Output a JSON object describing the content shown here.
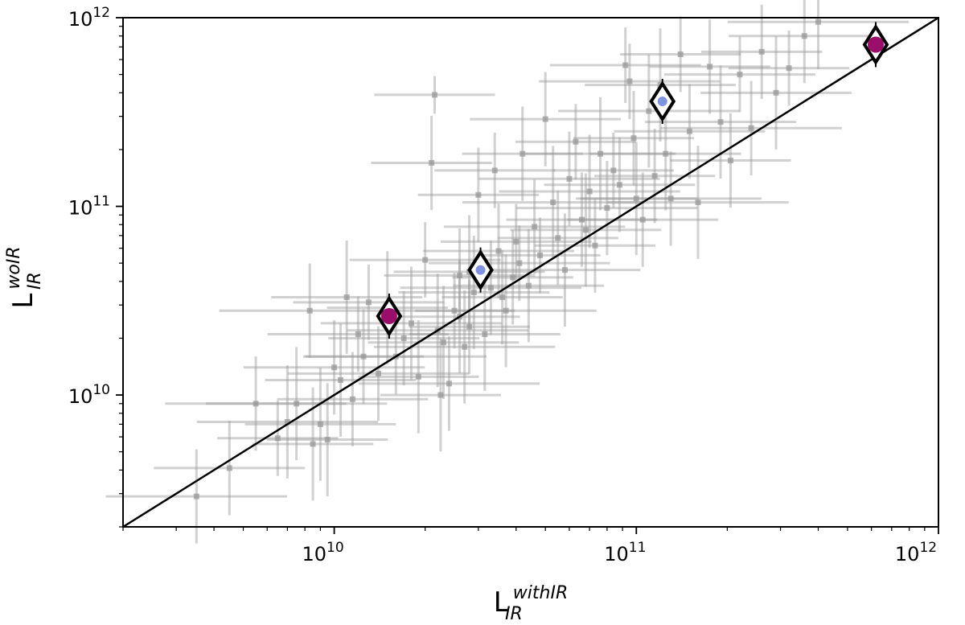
{
  "chart_data": {
    "type": "scatter",
    "xscale": "log",
    "yscale": "log",
    "xlim": [
      2000000000.0,
      1000000000000.0
    ],
    "ylim": [
      2000000000.0,
      1000000000000.0
    ],
    "grid": false,
    "legend": "none",
    "xlabel": {
      "main": "L",
      "sub": "IR",
      "sup": "withIR"
    },
    "ylabel": {
      "main": "L",
      "sub": "IR",
      "sup": "woIR"
    },
    "xticks": [
      {
        "value": 10000000000.0,
        "base": "10",
        "exp": "10"
      },
      {
        "value": 100000000000.0,
        "base": "10",
        "exp": "11"
      },
      {
        "value": 1000000000000.0,
        "base": "10",
        "exp": "12"
      }
    ],
    "yticks": [
      {
        "value": 10000000000.0,
        "base": "10",
        "exp": "10"
      },
      {
        "value": 100000000000.0,
        "base": "10",
        "exp": "11"
      },
      {
        "value": 1000000000000.0,
        "base": "10",
        "exp": "12"
      }
    ],
    "one_to_one_line": {
      "from": [
        2000000000.0,
        2000000000.0
      ],
      "to": [
        1000000000000.0,
        1000000000000.0
      ],
      "color": "#000000"
    },
    "series": [
      {
        "role": "background-sample",
        "color": "#999999",
        "marker": "square",
        "points": [
          [
            3500000000.0,
            2900000000.0,
            0.3,
            0.25
          ],
          [
            4500000000.0,
            4100000000.0,
            0.25,
            0.25
          ],
          [
            5500000000.0,
            9000000000.0,
            0.3,
            0.25
          ],
          [
            6500000000.0,
            5900000000.0,
            0.2,
            0.2
          ],
          [
            7500000000.0,
            9000000000.0,
            0.3,
            0.3
          ],
          [
            8300000000.0,
            28000000000.0,
            0.3,
            0.25
          ],
          [
            8500000000.0,
            5500000000.0,
            0.2,
            0.3
          ],
          [
            9000000000.0,
            7000000000.0,
            0.25,
            0.3
          ],
          [
            9500000000.0,
            5800000000.0,
            0.2,
            0.3
          ],
          [
            10000000000.0,
            14000000000.0,
            0.3,
            0.25
          ],
          [
            10500000000.0,
            12000000000.0,
            0.25,
            0.3
          ],
          [
            11000000000.0,
            33000000000.0,
            0.25,
            0.3
          ],
          [
            12000000000.0,
            21000000000.0,
            0.3,
            0.2
          ],
          [
            12500000000.0,
            16000000000.0,
            0.2,
            0.25
          ],
          [
            13000000000.0,
            31000000000.0,
            0.25,
            0.2
          ],
          [
            14000000000.0,
            13000000000.0,
            0.3,
            0.25
          ],
          [
            15000000000.0,
            29000000000.0,
            0.2,
            0.3
          ],
          [
            16000000000.0,
            16000000000.0,
            0.3,
            0.2
          ],
          [
            17000000000.0,
            20000000000.0,
            0.25,
            0.25
          ],
          [
            18000000000.0,
            24000000000.0,
            0.3,
            0.3
          ],
          [
            19000000000.0,
            12500000000.0,
            0.2,
            0.3
          ],
          [
            20000000000.0,
            52000000000.0,
            0.25,
            0.2
          ],
          [
            21000000000.0,
            170000000000.0,
            0.2,
            0.25
          ],
          [
            21500000000.0,
            390000000000.0,
            0.2,
            0.1
          ],
          [
            22000000000.0,
            22000000000.0,
            0.3,
            0.3
          ],
          [
            22500000000.0,
            10000000000.0,
            0.2,
            0.3
          ],
          [
            23000000000.0,
            19000000000.0,
            0.25,
            0.3
          ],
          [
            24000000000.0,
            11500000000.0,
            0.3,
            0.25
          ],
          [
            25000000000.0,
            28000000000.0,
            0.2,
            0.2
          ],
          [
            26000000000.0,
            43000000000.0,
            0.25,
            0.25
          ],
          [
            27000000000.0,
            18000000000.0,
            0.3,
            0.3
          ],
          [
            28000000000.0,
            23000000000.0,
            0.2,
            0.25
          ],
          [
            29000000000.0,
            35000000000.0,
            0.25,
            0.3
          ],
          [
            30000000000.0,
            115000000000.0,
            0.2,
            0.25
          ],
          [
            31500000000.0,
            21000000000.0,
            0.25,
            0.3
          ],
          [
            33000000000.0,
            37000000000.0,
            0.3,
            0.25
          ],
          [
            34000000000.0,
            155000000000.0,
            0.2,
            0.2
          ],
          [
            35000000000.0,
            58000000000.0,
            0.25,
            0.25
          ],
          [
            37000000000.0,
            28000000000.0,
            0.3,
            0.3
          ],
          [
            39000000000.0,
            42000000000.0,
            0.2,
            0.25
          ],
          [
            40000000000.0,
            65000000000.0,
            0.25,
            0.2
          ],
          [
            42000000000.0,
            190000000000.0,
            0.2,
            0.25
          ],
          [
            44000000000.0,
            38000000000.0,
            0.25,
            0.3
          ],
          [
            46000000000.0,
            78000000000.0,
            0.3,
            0.25
          ],
          [
            48000000000.0,
            55000000000.0,
            0.2,
            0.2
          ],
          [
            50000000000.0,
            290000000000.0,
            0.25,
            0.25
          ],
          [
            53000000000.0,
            105000000000.0,
            0.3,
            0.3
          ],
          [
            55000000000.0,
            68000000000.0,
            0.2,
            0.25
          ],
          [
            58000000000.0,
            46000000000.0,
            0.25,
            0.3
          ],
          [
            60000000000.0,
            140000000000.0,
            0.3,
            0.25
          ],
          [
            63000000000.0,
            220000000000.0,
            0.2,
            0.2
          ],
          [
            66000000000.0,
            85000000000.0,
            0.25,
            0.25
          ],
          [
            70000000000.0,
            120000000000.0,
            0.3,
            0.3
          ],
          [
            73000000000.0,
            62000000000.0,
            0.2,
            0.25
          ],
          [
            76000000000.0,
            190000000000.0,
            0.25,
            0.3
          ],
          [
            80000000000.0,
            98000000000.0,
            0.3,
            0.25
          ],
          [
            84000000000.0,
            155000000000.0,
            0.2,
            0.2
          ],
          [
            88000000000.0,
            130000000000.0,
            0.25,
            0.25
          ],
          [
            92000000000.0,
            560000000000.0,
            0.25,
            0.2
          ],
          [
            95000000000.0,
            460000000000.0,
            0.3,
            0.2
          ],
          [
            100000000000.0,
            110000000000.0,
            0.2,
            0.3
          ],
          [
            105000000000.0,
            85000000000.0,
            0.25,
            0.25
          ],
          [
            110000000000.0,
            320000000000.0,
            0.3,
            0.3
          ],
          [
            115000000000.0,
            145000000000.0,
            0.2,
            0.25
          ],
          [
            120000000000.0,
            440000000000.0,
            0.25,
            0.3
          ],
          [
            130000000000.0,
            110000000000.0,
            0.3,
            0.25
          ],
          [
            140000000000.0,
            640000000000.0,
            0.2,
            0.2
          ],
          [
            150000000000.0,
            250000000000.0,
            0.25,
            0.25
          ],
          [
            160000000000.0,
            105000000000.0,
            0.3,
            0.3
          ],
          [
            175000000000.0,
            550000000000.0,
            0.2,
            0.25
          ],
          [
            190000000000.0,
            280000000000.0,
            0.25,
            0.3
          ],
          [
            205000000000.0,
            175000000000.0,
            0.2,
            0.25
          ],
          [
            220000000000.0,
            500000000000.0,
            0.25,
            0.2
          ],
          [
            240000000000.0,
            260000000000.0,
            0.3,
            0.25
          ],
          [
            260000000000.0,
            660000000000.0,
            0.2,
            0.25
          ],
          [
            290000000000.0,
            400000000000.0,
            0.25,
            0.3
          ],
          [
            320000000000.0,
            540000000000.0,
            0.2,
            0.2
          ],
          [
            360000000000.0,
            800000000000.0,
            0.25,
            0.25
          ],
          [
            400000000000.0,
            950000000000.0,
            0.3,
            0.25
          ],
          [
            28000000000.0,
            45000000000.0,
            0.25,
            0.3
          ],
          [
            36000000000.0,
            33000000000.0,
            0.2,
            0.25
          ],
          [
            41000000000.0,
            50000000000.0,
            0.3,
            0.2
          ],
          [
            68000000000.0,
            75000000000.0,
            0.25,
            0.3
          ],
          [
            98000000000.0,
            230000000000.0,
            0.2,
            0.25
          ],
          [
            125000000000.0,
            190000000000.0,
            0.25,
            0.3
          ],
          [
            26000000000.0,
            26000000000.0,
            0.2,
            0.3
          ],
          [
            11500000000.0,
            9500000000.0,
            0.25,
            0.25
          ],
          [
            7000000000.0,
            7200000000.0,
            0.3,
            0.3
          ]
        ]
      },
      {
        "role": "highlighted-magenta",
        "color": "#9b0d6b",
        "marker": "circle-in-diamond",
        "points": [
          [
            15200000000.0,
            26200000000.0
          ],
          [
            620000000000.0,
            720000000000.0
          ]
        ]
      },
      {
        "role": "highlighted-blue",
        "color": "#7f93e0",
        "marker": "dot-in-diamond",
        "points": [
          [
            30500000000.0,
            46000000000.0
          ],
          [
            122000000000.0,
            360000000000.0
          ]
        ]
      }
    ]
  }
}
